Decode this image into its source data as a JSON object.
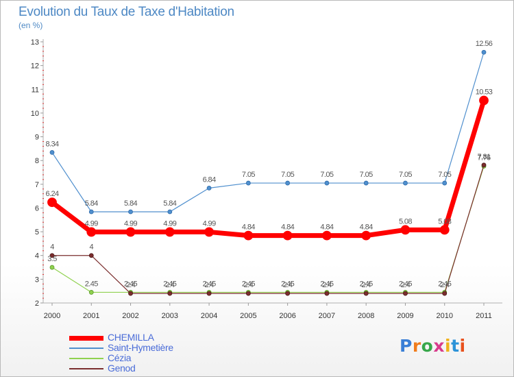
{
  "chart_data": {
    "type": "line",
    "title": "Evolution du Taux de Taxe d'Habitation",
    "subtitle": "(en %)",
    "x": [
      "2000",
      "2001",
      "2002",
      "2003",
      "2004",
      "2005",
      "2006",
      "2007",
      "2008",
      "2009",
      "2010",
      "2011"
    ],
    "ylim": [
      2,
      13
    ],
    "yticks": [
      2,
      3,
      4,
      5,
      6,
      7,
      8,
      9,
      10,
      11,
      12,
      13
    ],
    "grid": false,
    "legend_position": "bottom-left",
    "series": [
      {
        "name": "CHEMILLA",
        "color": "#ff0000",
        "values": [
          6.24,
          4.99,
          4.99,
          4.99,
          4.99,
          4.84,
          4.84,
          4.84,
          4.84,
          5.08,
          5.08,
          10.53
        ],
        "labels": [
          "6.24",
          "4.99",
          "4.99",
          "4.99",
          "4.99",
          "4.84",
          "4.84",
          "4.84",
          "4.84",
          "5.08",
          "5.08",
          "10.53"
        ]
      },
      {
        "name": "Saint-Hymetière",
        "color": "#4f8fce",
        "values": [
          8.34,
          5.84,
          5.84,
          5.84,
          6.84,
          7.05,
          7.05,
          7.05,
          7.05,
          7.05,
          7.05,
          12.56
        ],
        "labels": [
          "8.34",
          "5.84",
          "5.84",
          "5.84",
          "6.84",
          "7.05",
          "7.05",
          "7.05",
          "7.05",
          "7.05",
          "7.05",
          "12.56"
        ]
      },
      {
        "name": "Cézia",
        "color": "#8fd14f",
        "values": [
          3.5,
          2.45,
          2.45,
          2.45,
          2.45,
          2.45,
          2.45,
          2.45,
          2.45,
          2.45,
          2.45,
          7.76
        ],
        "labels": [
          "3.5",
          "2.45",
          "2.45",
          "2.45",
          "2.45",
          "2.45",
          "2.45",
          "2.45",
          "2.45",
          "2.45",
          "2.45",
          "7.76"
        ]
      },
      {
        "name": "Genod",
        "color": "#7a2d2d",
        "values": [
          4,
          4,
          2.4,
          2.4,
          2.4,
          2.4,
          2.4,
          2.4,
          2.4,
          2.4,
          2.4,
          7.81
        ],
        "labels": [
          "4",
          "4",
          "2.4",
          "2.4",
          "2.4",
          "2.4",
          "2.4",
          "2.4",
          "2.4",
          "2.4",
          "2.4",
          "7.81"
        ]
      }
    ]
  },
  "brand": {
    "text": "Proxiti",
    "letter_colors": [
      "#3a7fd6",
      "#f07c1c",
      "#37a74a",
      "#d83c8c",
      "#f0b21c",
      "#2c93d8",
      "#e8501c"
    ]
  }
}
